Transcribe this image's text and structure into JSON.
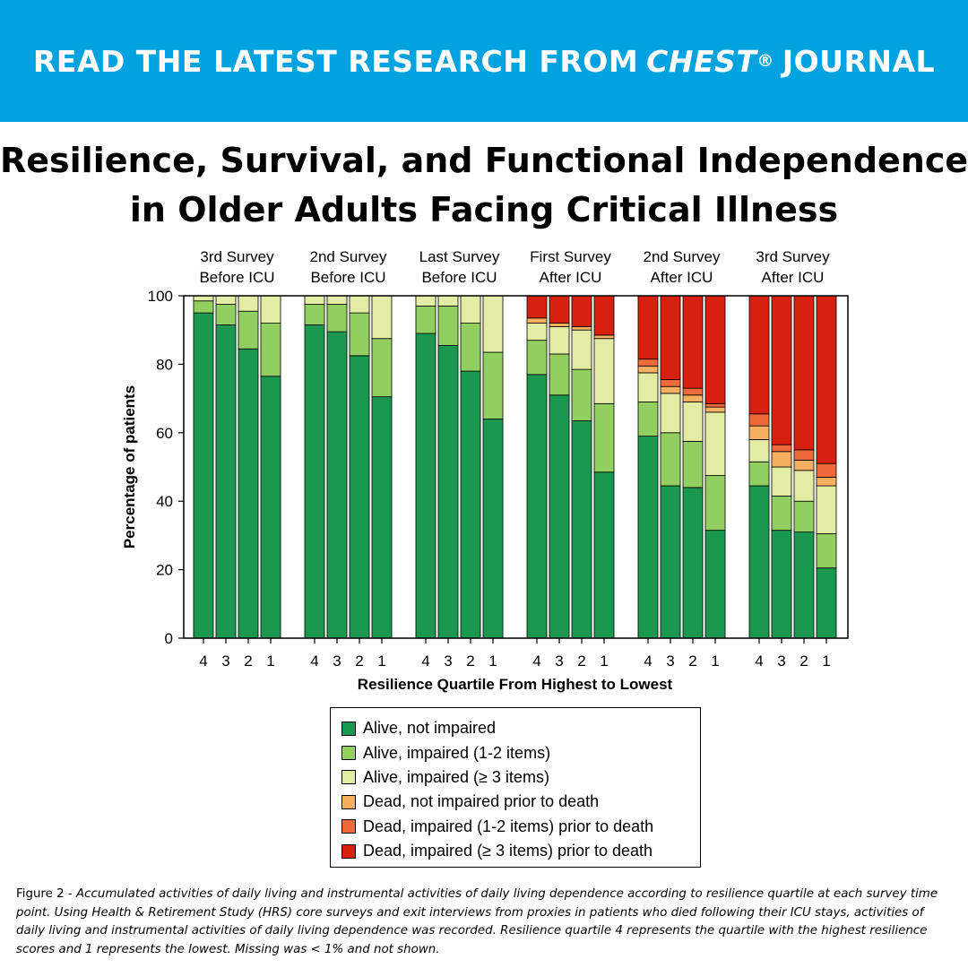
{
  "banner": {
    "prefix": "READ THE LATEST RESEARCH FROM",
    "journal": "CHEST",
    "reg": "®",
    "suffix": "JOURNAL"
  },
  "title": {
    "line1": "Resilience, Survival, and Functional Independence",
    "line2": "in Older Adults Facing Critical Illness"
  },
  "chart_data": {
    "type": "bar",
    "stacked": true,
    "ylabel": "Percentage of patients",
    "xlabel": "Resilience Quartile From Highest to Lowest",
    "ylim": [
      0,
      100
    ],
    "yticks": [
      0,
      20,
      40,
      60,
      80,
      100
    ],
    "grid": false,
    "groups": [
      {
        "label": [
          "3rd Survey",
          "Before ICU"
        ],
        "quartiles": [
          "4",
          "3",
          "2",
          "1"
        ],
        "values": [
          [
            95,
            3.5,
            1.5,
            0,
            0,
            0
          ],
          [
            91.5,
            6,
            2.5,
            0,
            0,
            0
          ],
          [
            84.5,
            11,
            4.5,
            0,
            0,
            0
          ],
          [
            76.5,
            15.5,
            8,
            0,
            0,
            0
          ]
        ]
      },
      {
        "label": [
          "2nd Survey",
          "Before ICU"
        ],
        "quartiles": [
          "4",
          "3",
          "2",
          "1"
        ],
        "values": [
          [
            91.5,
            6,
            2.5,
            0,
            0,
            0
          ],
          [
            89.5,
            8,
            2.5,
            0,
            0,
            0
          ],
          [
            82.5,
            12.5,
            5,
            0,
            0,
            0
          ],
          [
            70.5,
            17,
            12.5,
            0,
            0,
            0
          ]
        ]
      },
      {
        "label": [
          "Last Survey",
          "Before ICU"
        ],
        "quartiles": [
          "4",
          "3",
          "2",
          "1"
        ],
        "values": [
          [
            89,
            8,
            3,
            0,
            0,
            0
          ],
          [
            85.5,
            11.5,
            3,
            0,
            0,
            0
          ],
          [
            78,
            14,
            8,
            0,
            0,
            0
          ],
          [
            64,
            19.5,
            16.5,
            0,
            0,
            0
          ]
        ]
      },
      {
        "label": [
          "First Survey",
          "After ICU"
        ],
        "quartiles": [
          "4",
          "3",
          "2",
          "1"
        ],
        "values": [
          [
            77,
            10,
            5,
            1.5,
            0,
            6.5
          ],
          [
            71,
            12,
            8,
            1,
            0,
            8
          ],
          [
            63.5,
            15,
            11.5,
            1,
            0,
            9
          ],
          [
            48.5,
            20,
            19,
            1,
            0,
            11.5
          ]
        ]
      },
      {
        "label": [
          "2nd Survey",
          "After ICU"
        ],
        "quartiles": [
          "4",
          "3",
          "2",
          "1"
        ],
        "values": [
          [
            59,
            10,
            8.5,
            2,
            2,
            18.5
          ],
          [
            44.5,
            15.5,
            11.5,
            2,
            2,
            24.5
          ],
          [
            44,
            13.5,
            11.5,
            2,
            2,
            27
          ],
          [
            31.5,
            16,
            18.5,
            1.5,
            1,
            31.5
          ]
        ]
      },
      {
        "label": [
          "3rd Survey",
          "After ICU"
        ],
        "quartiles": [
          "4",
          "3",
          "2",
          "1"
        ],
        "values": [
          [
            44.5,
            7,
            6.5,
            4,
            3.5,
            34.5
          ],
          [
            31.5,
            10,
            8.5,
            4.5,
            2,
            43.5
          ],
          [
            31,
            9,
            9,
            3,
            3,
            45
          ],
          [
            20.5,
            10,
            14,
            2.5,
            4,
            49
          ]
        ]
      }
    ],
    "series": [
      {
        "name": "Alive, not impaired",
        "color": "#1a9850"
      },
      {
        "name": "Alive, impaired (1-2 items)",
        "color": "#91cf60"
      },
      {
        "name": "Alive, impaired (≥ 3 items)",
        "color": "#e3eca3"
      },
      {
        "name": "Dead, not impaired prior to death",
        "color": "#f4b060"
      },
      {
        "name": "Dead, impaired (1-2 items) prior to death",
        "color": "#ef6a3b"
      },
      {
        "name": "Dead, impaired (≥ 3 items) prior to death",
        "color": "#d7200f"
      }
    ]
  },
  "caption": {
    "label": "Figure 2 - ",
    "text": "Accumulated activities of daily living and instrumental activities of daily living dependence according to resilience quartile at each survey time point. Using Health & Retirement Study (HRS) core surveys and exit interviews from proxies in patients who died following their ICU stays, activities of daily living and instrumental activities of daily living dependence was recorded. Resilience quartile 4 represents the quartile with the highest resilience scores and 1 represents the lowest. Missing was < 1% and not shown."
  }
}
